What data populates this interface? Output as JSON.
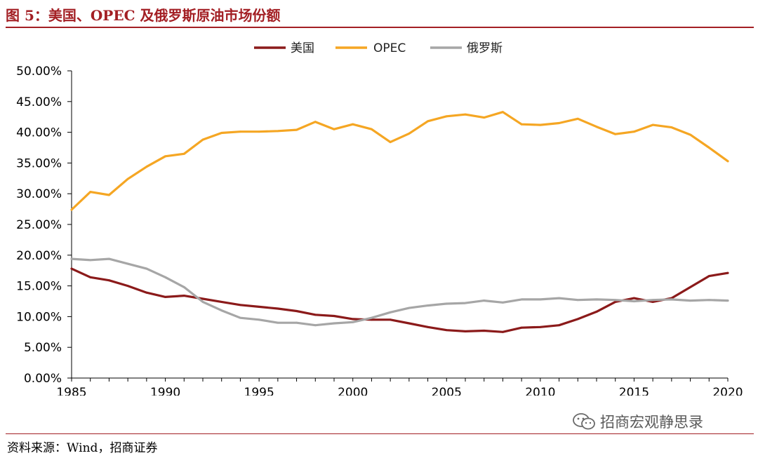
{
  "header": {
    "title": "图 5：美国、OPEC 及俄罗斯原油市场份额"
  },
  "footer": {
    "source": "资料来源：Wind，招商证券",
    "watermark": "招商宏观静思录",
    "watermark_icon": "wechat-icon"
  },
  "chart_data": {
    "type": "line",
    "title": "",
    "xlabel": "",
    "ylabel": "",
    "x": [
      1985,
      1986,
      1987,
      1988,
      1989,
      1990,
      1991,
      1992,
      1993,
      1994,
      1995,
      1996,
      1997,
      1998,
      1999,
      2000,
      2001,
      2002,
      2003,
      2004,
      2005,
      2006,
      2007,
      2008,
      2009,
      2010,
      2011,
      2012,
      2013,
      2014,
      2015,
      2016,
      2017,
      2018,
      2019,
      2020
    ],
    "xlim": [
      1985,
      2020
    ],
    "xticks": [
      1985,
      1990,
      1995,
      2000,
      2005,
      2010,
      2015,
      2020
    ],
    "ylim": [
      0,
      50
    ],
    "yticks": [
      0,
      5,
      10,
      15,
      20,
      25,
      30,
      35,
      40,
      45,
      50
    ],
    "ytick_labels": [
      "0.00%",
      "5.00%",
      "10.00%",
      "15.00%",
      "20.00%",
      "25.00%",
      "30.00%",
      "35.00%",
      "40.00%",
      "45.00%",
      "50.00%"
    ],
    "grid": false,
    "legend_position": "top-center",
    "series": [
      {
        "name": "美国",
        "color": "#8b1a1a",
        "values": [
          17.8,
          16.4,
          15.9,
          15.0,
          13.9,
          13.2,
          13.4,
          12.9,
          12.4,
          11.9,
          11.6,
          11.3,
          10.9,
          10.3,
          10.1,
          9.6,
          9.5,
          9.5,
          8.9,
          8.3,
          7.8,
          7.6,
          7.7,
          7.5,
          8.2,
          8.3,
          8.6,
          9.6,
          10.8,
          12.4,
          13.0,
          12.4,
          13.0,
          14.8,
          16.6,
          17.1
        ]
      },
      {
        "name": "OPEC",
        "color": "#f5a623",
        "values": [
          27.4,
          30.3,
          29.8,
          32.4,
          34.4,
          36.1,
          36.5,
          38.8,
          39.9,
          40.1,
          40.1,
          40.2,
          40.4,
          41.7,
          40.5,
          41.3,
          40.5,
          38.4,
          39.8,
          41.8,
          42.6,
          42.9,
          42.4,
          43.3,
          41.3,
          41.2,
          41.5,
          42.2,
          40.9,
          39.7,
          40.1,
          41.2,
          40.8,
          39.6,
          37.5,
          35.3
        ]
      },
      {
        "name": "俄罗斯",
        "color": "#a6a6a6",
        "values": [
          19.4,
          19.2,
          19.4,
          18.6,
          17.8,
          16.4,
          14.8,
          12.4,
          11.0,
          9.8,
          9.5,
          9.0,
          9.0,
          8.6,
          8.9,
          9.1,
          9.8,
          10.7,
          11.4,
          11.8,
          12.1,
          12.2,
          12.6,
          12.3,
          12.8,
          12.8,
          13.0,
          12.7,
          12.8,
          12.7,
          12.5,
          12.7,
          12.8,
          12.6,
          12.7,
          12.6
        ]
      }
    ]
  }
}
